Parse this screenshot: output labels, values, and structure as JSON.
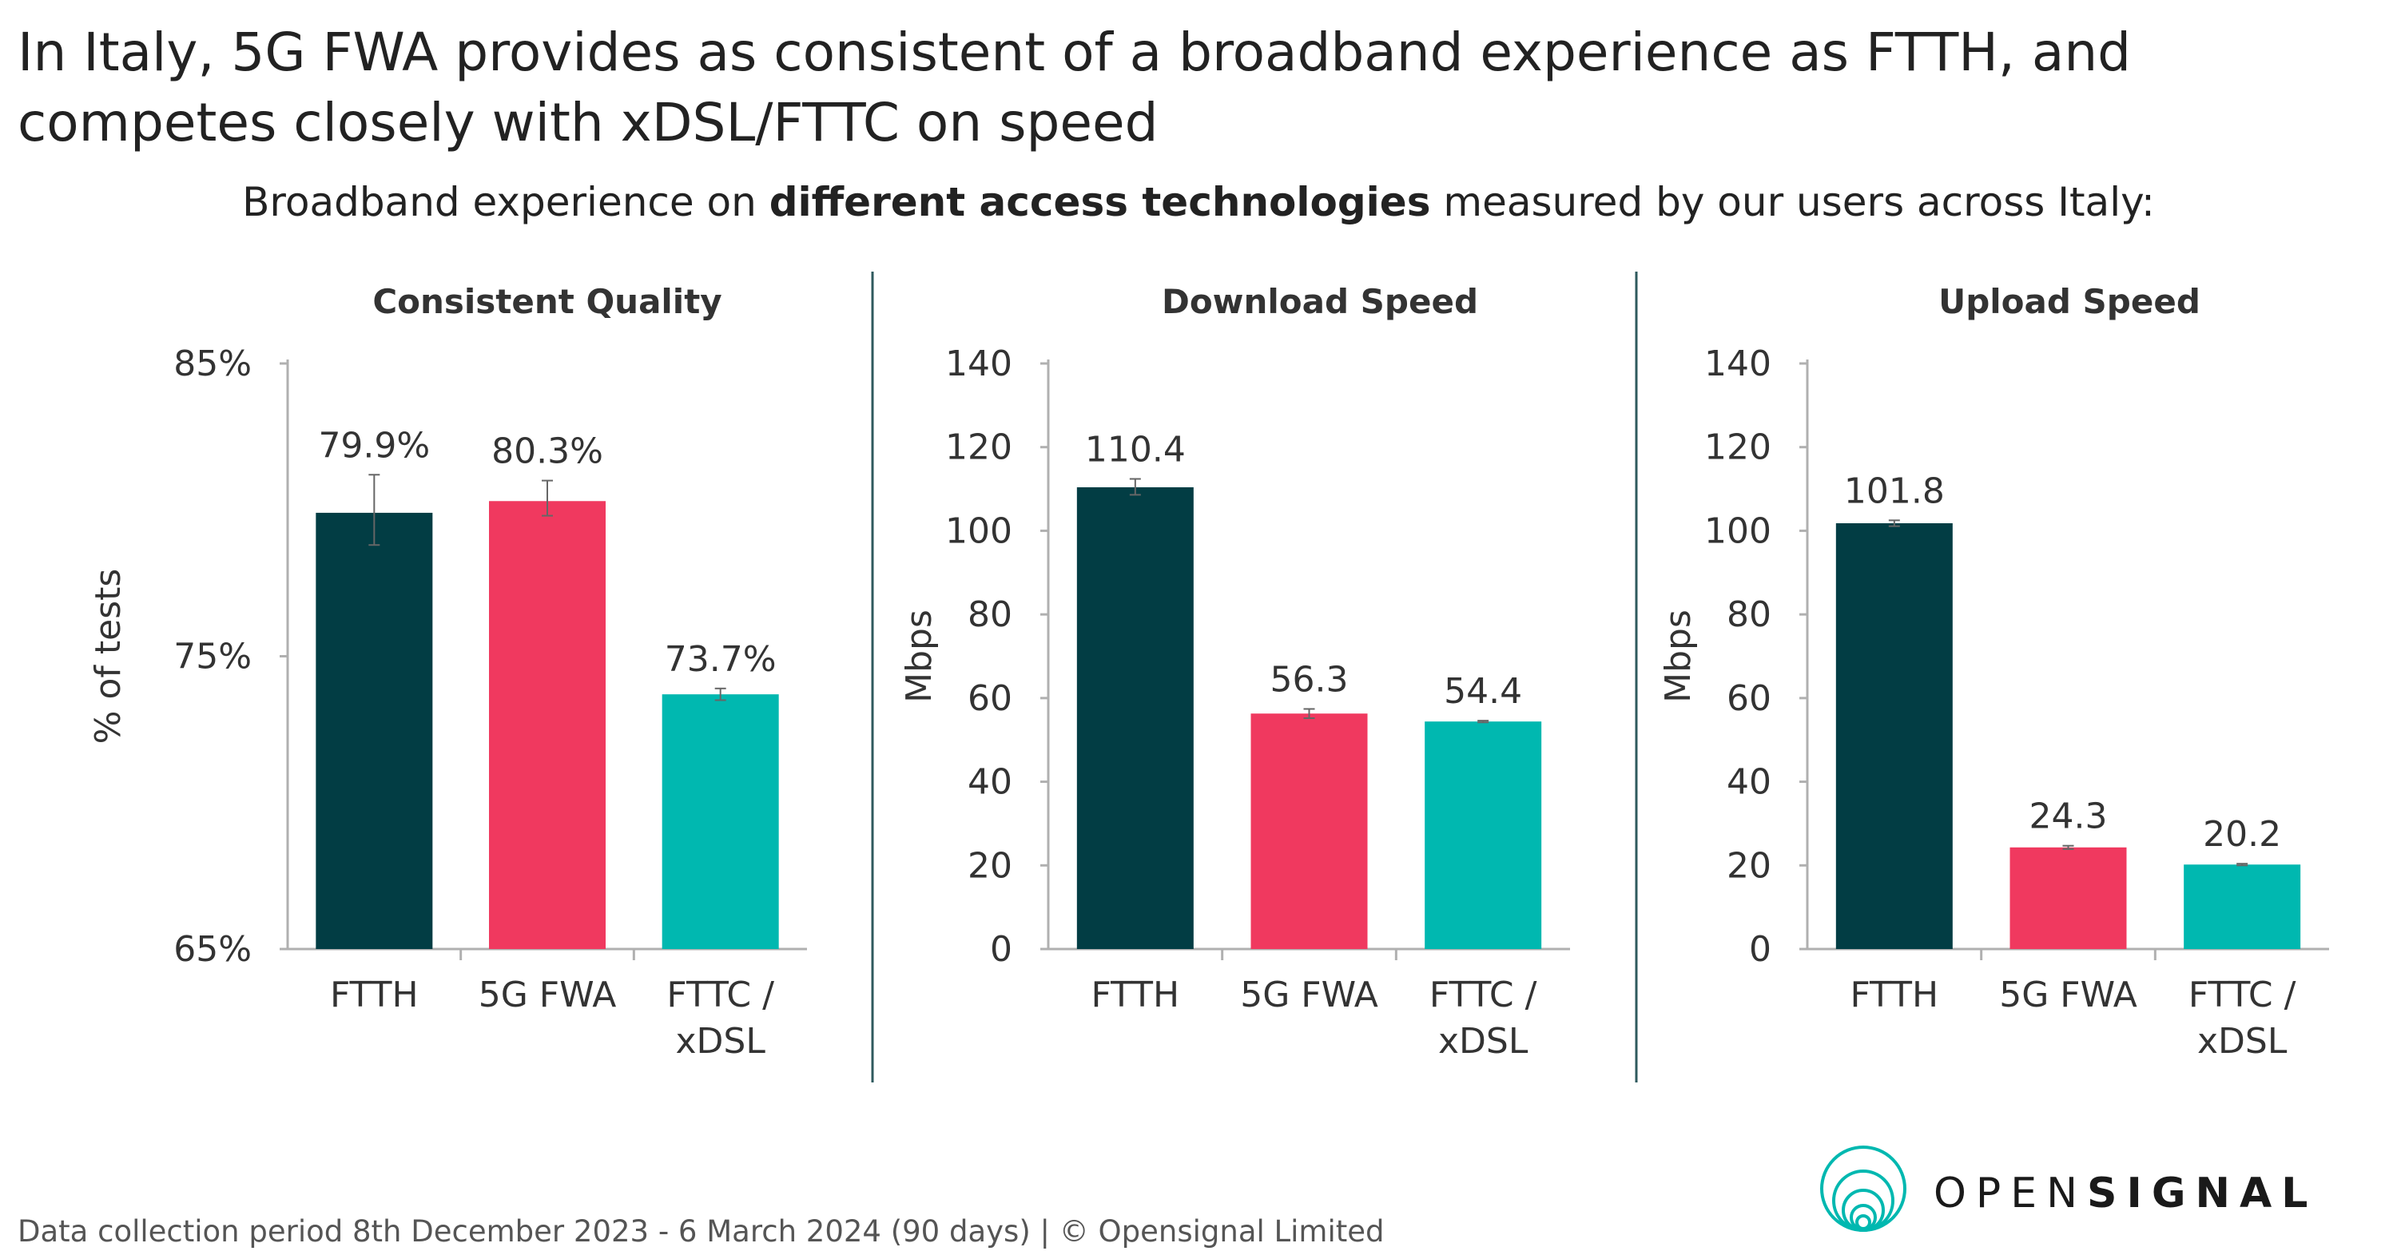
{
  "headline": "In Italy, 5G FWA provides as consistent of a broadband experience as FTTH, and competes closely with xDSL/FTTC on speed",
  "subtitle": {
    "pre": "Broadband experience on ",
    "bold": "different access technologies",
    "post": " measured by our users across Italy:"
  },
  "footer": "Data collection period 8th December 2023 - 6 March 2024  (90 days)  |  © Opensignal Limited",
  "logo": {
    "light": "OPEN",
    "bold": "SIGNAL"
  },
  "colors": {
    "FTTH": "#023d44",
    "5G FWA": "#f0395f",
    "FTTC / xDSL": "#00b8b0",
    "axis": "#b0b0b0",
    "divider": "#2f5a5e",
    "error_bar": "#666666"
  },
  "chart_data": [
    {
      "type": "bar",
      "title": "Consistent Quality",
      "ylabel": "% of tests",
      "ylim": [
        65,
        85
      ],
      "yticks": [
        "65%",
        "75%",
        "85%"
      ],
      "ytick_values": [
        65,
        75,
        85
      ],
      "categories": [
        "FTTH",
        "5G FWA",
        "FTTC / xDSL"
      ],
      "values": [
        79.9,
        80.3,
        73.7
      ],
      "value_labels": [
        "79.9%",
        "80.3%",
        "73.7%"
      ],
      "error_low": [
        78.8,
        79.8,
        73.5
      ],
      "error_high": [
        81.2,
        81.0,
        73.9
      ]
    },
    {
      "type": "bar",
      "title": "Download Speed",
      "ylabel": "Mbps",
      "ylim": [
        0,
        140
      ],
      "yticks": [
        "0",
        "20",
        "40",
        "60",
        "80",
        "100",
        "120",
        "140"
      ],
      "ytick_values": [
        0,
        20,
        40,
        60,
        80,
        100,
        120,
        140
      ],
      "categories": [
        "FTTH",
        "5G FWA",
        "FTTC / xDSL"
      ],
      "values": [
        110.4,
        56.3,
        54.4
      ],
      "value_labels": [
        "110.4",
        "56.3",
        "54.4"
      ],
      "error_low": [
        108.6,
        55.2,
        54.2
      ],
      "error_high": [
        112.4,
        57.4,
        54.6
      ]
    },
    {
      "type": "bar",
      "title": "Upload Speed",
      "ylabel": "Mbps",
      "ylim": [
        0,
        140
      ],
      "yticks": [
        "0",
        "20",
        "40",
        "60",
        "80",
        "100",
        "120",
        "140"
      ],
      "ytick_values": [
        0,
        20,
        40,
        60,
        80,
        100,
        120,
        140
      ],
      "categories": [
        "FTTH",
        "5G FWA",
        "FTTC / xDSL"
      ],
      "values": [
        101.8,
        24.3,
        20.2
      ],
      "value_labels": [
        "101.8",
        "24.3",
        "20.2"
      ],
      "error_low": [
        101.1,
        23.9,
        20.0
      ],
      "error_high": [
        102.5,
        24.7,
        20.4
      ]
    }
  ]
}
